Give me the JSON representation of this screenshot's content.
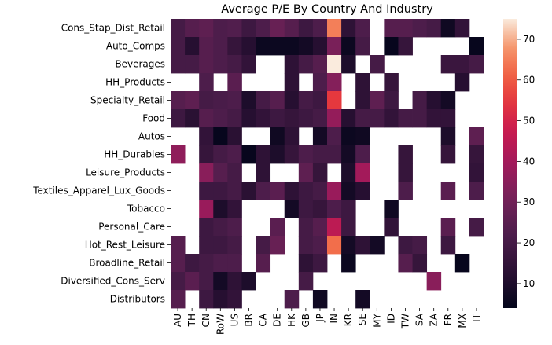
{
  "chart_data": {
    "type": "heatmap",
    "title": "Average P/E By Country And Industry",
    "xlabel": "",
    "ylabel": "",
    "x_categories": [
      "AU",
      "TH",
      "CN",
      "RoW",
      "US",
      "BR",
      "CA",
      "DE",
      "HK",
      "GB",
      "JP",
      "IN",
      "KR",
      "SE",
      "MY",
      "ID",
      "TW",
      "SA",
      "ZA",
      "FR",
      "MX",
      "IT"
    ],
    "y_categories": [
      "Cons_Stap_Dist_Retail",
      "Auto_Comps",
      "Beverages",
      "HH_Products",
      "Specialty_Retail",
      "Food",
      "Autos",
      "HH_Durables",
      "Leisure_Products",
      "Textiles_Apparel_Lux_Goods",
      "Tobacco",
      "Personal_Care",
      "Hot_Rest_Leisure",
      "Broadline_Retail",
      "Diversified_Cons_Serv",
      "Distributors"
    ],
    "values": [
      [
        20,
        24,
        26,
        22,
        23,
        18,
        22,
        28,
        24,
        18,
        22,
        65,
        14,
        22,
        null,
        24,
        24,
        22,
        20,
        7,
        15,
        null
      ],
      [
        20,
        12,
        24,
        22,
        16,
        12,
        6,
        6,
        6,
        8,
        12,
        32,
        6,
        20,
        null,
        5,
        16,
        null,
        null,
        null,
        null,
        5
      ],
      [
        20,
        20,
        24,
        22,
        20,
        15,
        null,
        null,
        14,
        20,
        24,
        75,
        10,
        null,
        20,
        null,
        null,
        null,
        null,
        17,
        17,
        20
      ],
      [
        null,
        null,
        22,
        null,
        25,
        null,
        null,
        null,
        14,
        null,
        22,
        34,
        null,
        14,
        null,
        16,
        null,
        null,
        null,
        null,
        12,
        null
      ],
      [
        24,
        26,
        20,
        21,
        22,
        10,
        20,
        24,
        12,
        20,
        18,
        55,
        null,
        14,
        26,
        18,
        null,
        20,
        12,
        8,
        null,
        null
      ],
      [
        18,
        13,
        24,
        22,
        20,
        12,
        15,
        18,
        16,
        18,
        20,
        37,
        12,
        20,
        20,
        15,
        20,
        20,
        15,
        15,
        null,
        null
      ],
      [
        null,
        null,
        15,
        5,
        13,
        null,
        null,
        7,
        14,
        null,
        8,
        22,
        6,
        7,
        null,
        null,
        null,
        null,
        null,
        10,
        null,
        26
      ],
      [
        36,
        null,
        16,
        20,
        22,
        5,
        14,
        10,
        16,
        22,
        20,
        20,
        8,
        22,
        null,
        null,
        16,
        null,
        null,
        16,
        null,
        16
      ],
      [
        null,
        null,
        35,
        24,
        20,
        null,
        14,
        null,
        null,
        26,
        16,
        null,
        10,
        40,
        null,
        null,
        16,
        null,
        null,
        null,
        null,
        15
      ],
      [
        null,
        null,
        18,
        18,
        20,
        13,
        22,
        25,
        14,
        18,
        20,
        38,
        8,
        12,
        null,
        null,
        22,
        null,
        null,
        25,
        null,
        22
      ],
      [
        null,
        null,
        38,
        10,
        15,
        null,
        null,
        null,
        8,
        18,
        16,
        22,
        18,
        null,
        null,
        7,
        null,
        null,
        null,
        null,
        null,
        null
      ],
      [
        null,
        null,
        18,
        20,
        22,
        null,
        null,
        25,
        null,
        20,
        24,
        45,
        18,
        null,
        null,
        15,
        null,
        null,
        null,
        25,
        null,
        20
      ],
      [
        24,
        null,
        18,
        18,
        20,
        null,
        20,
        28,
        null,
        20,
        22,
        63,
        8,
        14,
        8,
        null,
        18,
        20,
        null,
        18,
        null,
        null
      ],
      [
        24,
        18,
        20,
        22,
        22,
        null,
        24,
        null,
        null,
        14,
        18,
        null,
        6,
        null,
        null,
        null,
        24,
        16,
        null,
        null,
        5,
        null
      ],
      [
        20,
        25,
        20,
        8,
        14,
        10,
        null,
        null,
        null,
        20,
        null,
        null,
        null,
        null,
        null,
        null,
        null,
        null,
        35,
        null,
        null,
        null
      ],
      [
        24,
        null,
        18,
        12,
        15,
        null,
        null,
        null,
        22,
        null,
        7,
        null,
        null,
        8,
        null,
        null,
        null,
        null,
        null,
        null,
        null,
        null
      ]
    ],
    "colorbar": {
      "min": 4,
      "max": 75,
      "ticks": [
        10,
        20,
        30,
        40,
        50,
        60,
        70
      ],
      "colormap": "rocket"
    },
    "grid": false,
    "legend": "colorbar-right"
  }
}
